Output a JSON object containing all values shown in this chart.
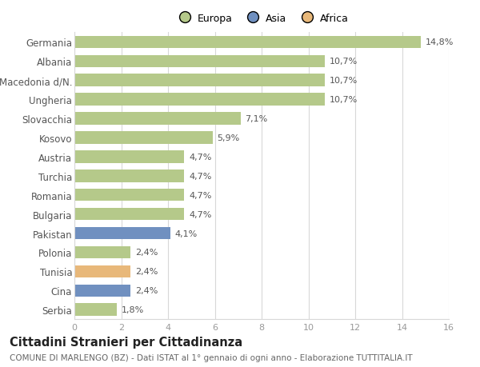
{
  "categories": [
    "Germania",
    "Albania",
    "Macedonia d/N.",
    "Ungheria",
    "Slovacchia",
    "Kosovo",
    "Austria",
    "Turchia",
    "Romania",
    "Bulgaria",
    "Pakistan",
    "Polonia",
    "Tunisia",
    "Cina",
    "Serbia"
  ],
  "values": [
    14.8,
    10.7,
    10.7,
    10.7,
    7.1,
    5.9,
    4.7,
    4.7,
    4.7,
    4.7,
    4.1,
    2.4,
    2.4,
    2.4,
    1.8
  ],
  "labels": [
    "14,8%",
    "10,7%",
    "10,7%",
    "10,7%",
    "7,1%",
    "5,9%",
    "4,7%",
    "4,7%",
    "4,7%",
    "4,7%",
    "4,1%",
    "2,4%",
    "2,4%",
    "2,4%",
    "1,8%"
  ],
  "continents": [
    "Europa",
    "Europa",
    "Europa",
    "Europa",
    "Europa",
    "Europa",
    "Europa",
    "Europa",
    "Europa",
    "Europa",
    "Asia",
    "Europa",
    "Africa",
    "Asia",
    "Europa"
  ],
  "colors": {
    "Europa": "#b5c98a",
    "Asia": "#7090c0",
    "Africa": "#e8b87a"
  },
  "xlim": [
    0,
    16
  ],
  "xticks": [
    0,
    2,
    4,
    6,
    8,
    10,
    12,
    14,
    16
  ],
  "title": "Cittadini Stranieri per Cittadinanza",
  "subtitle": "COMUNE DI MARLENGO (BZ) - Dati ISTAT al 1° gennaio di ogni anno - Elaborazione TUTTITALIA.IT",
  "bg_color": "#ffffff",
  "grid_color": "#d8d8d8",
  "bar_height": 0.65,
  "label_fontsize": 8,
  "ytick_fontsize": 8.5,
  "xtick_fontsize": 8,
  "title_fontsize": 10.5,
  "subtitle_fontsize": 7.5,
  "legend_fontsize": 9
}
